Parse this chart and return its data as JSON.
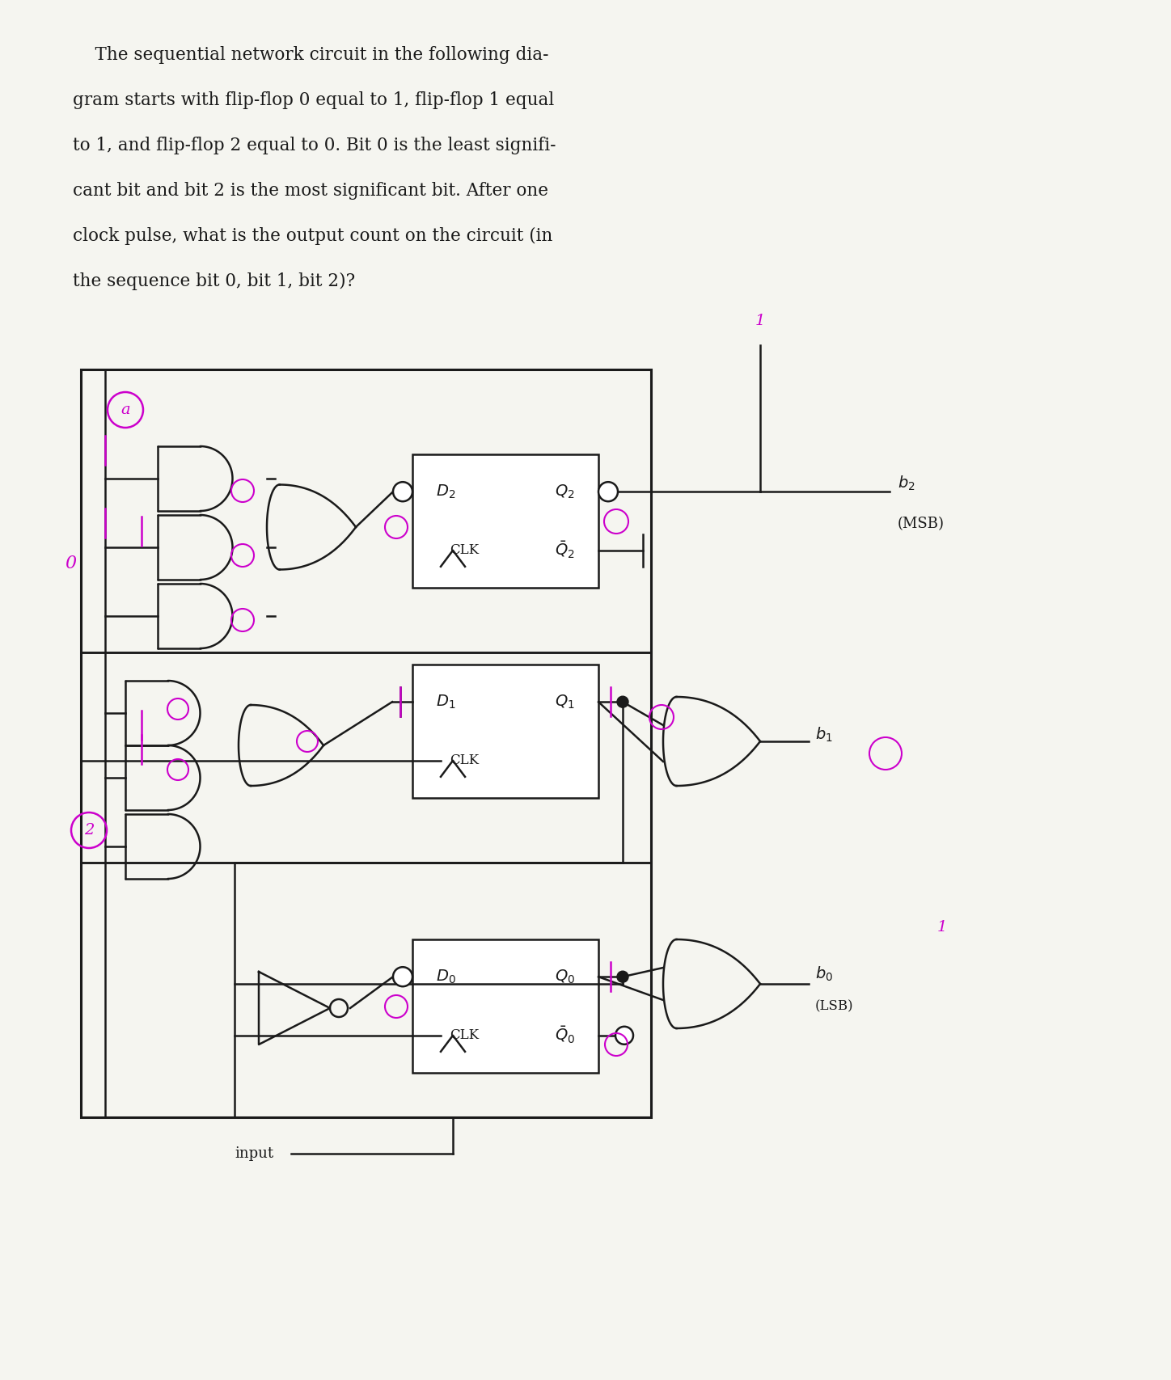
{
  "bg_color": "#f5f5f0",
  "line_color": "#1a1a1a",
  "annotation_color": "#cc00cc",
  "text_color": "#1a1a1a",
  "text_lines": [
    "    The sequential network circuit in the following dia-",
    "gram starts with flip-flop 0 equal to 1, flip-flop 1 equal",
    "to 1, and flip-flop 2 equal to 0. Bit 0 is the least signifi-",
    "cant bit and bit 2 is the most significant bit. After one",
    "clock pulse, what is the output count on the circuit (in",
    "the sequence bit 0, bit 1, bit 2)?"
  ]
}
